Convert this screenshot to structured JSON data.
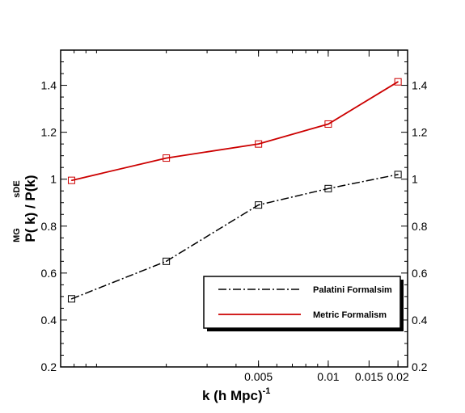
{
  "chart_data": {
    "type": "line",
    "xscale": "log",
    "xlim": [
      0.0007,
      0.022
    ],
    "ylim": [
      0.2,
      1.55
    ],
    "xlabel": {
      "base": "k (h Mpc)",
      "sup": "-1"
    },
    "ylabel": {
      "sup1": "MG",
      "main1": "P( k)",
      "sep": " / ",
      "sup2": "sDE",
      "main2": "P(k)"
    },
    "x": [
      0.00078,
      0.002,
      0.005,
      0.01,
      0.02
    ],
    "xticks": [
      {
        "value": 0.005,
        "label": "0.005"
      },
      {
        "value": 0.01,
        "label": "0.01"
      },
      {
        "value": 0.015,
        "label": "0.015"
      },
      {
        "value": 0.02,
        "label": "0.02"
      }
    ],
    "yticks": [
      {
        "value": 0.2,
        "label": "0.2"
      },
      {
        "value": 0.4,
        "label": "0.4"
      },
      {
        "value": 0.6,
        "label": "0.6"
      },
      {
        "value": 0.8,
        "label": "0.8"
      },
      {
        "value": 1.0,
        "label": "1"
      },
      {
        "value": 1.2,
        "label": "1.2"
      },
      {
        "value": 1.4,
        "label": "1.4"
      }
    ],
    "series": [
      {
        "name": "Palatini Formalsim",
        "color": "#000000",
        "dash": "dashdot",
        "marker": "square",
        "values": [
          0.49,
          0.65,
          0.89,
          0.96,
          1.02
        ]
      },
      {
        "name": "Metric Formalism",
        "color": "#cc0000",
        "dash": "solid",
        "marker": "square",
        "values": [
          0.995,
          1.09,
          1.15,
          1.235,
          1.415
        ]
      }
    ],
    "legend": "bottom-right",
    "grid": false
  }
}
